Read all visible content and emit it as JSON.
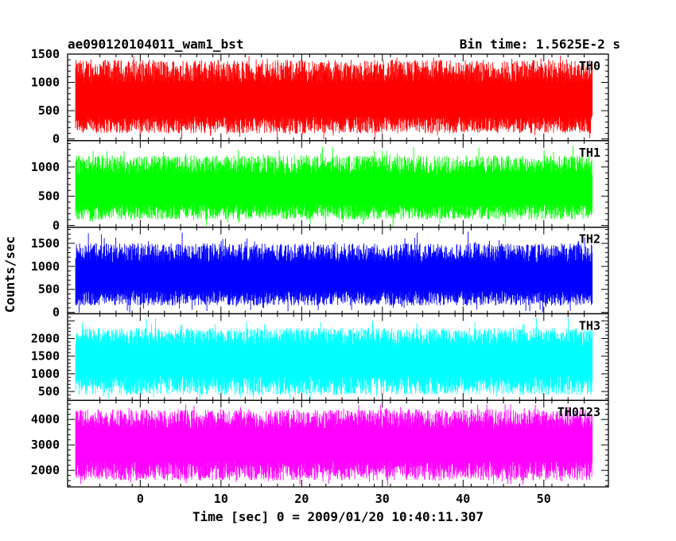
{
  "header": {
    "title": "ae090120104011_wam1_bst",
    "bin_time": "Bin time: 1.5625E-2 s"
  },
  "chart_data": {
    "type": "line",
    "title": "ae090120104011_wam1_bst",
    "xlabel": "Time [sec] 0 = 2009/01/20 10:40:11.307",
    "ylabel": "Counts/sec",
    "xlim": [
      -9,
      58
    ],
    "x_ticks": [
      0,
      10,
      20,
      30,
      40,
      50
    ],
    "x_range_data": [
      -8,
      56
    ],
    "grid": false,
    "legend": "none",
    "panels": [
      {
        "name": "TH0",
        "color": "#ff0000",
        "ylim": [
          -30,
          1500
        ],
        "y_ticks": [
          0,
          500,
          1000,
          1500
        ],
        "low": 100,
        "mid": 650,
        "high": 1400,
        "peak": 1500
      },
      {
        "name": "TH1",
        "color": "#00ff00",
        "ylim": [
          -30,
          1450
        ],
        "y_ticks": [
          0,
          500,
          1000
        ],
        "low": 100,
        "mid": 600,
        "high": 1200,
        "peak": 1400
      },
      {
        "name": "TH2",
        "color": "#0000ff",
        "ylim": [
          -30,
          1850
        ],
        "y_ticks": [
          0,
          500,
          1000,
          1500
        ],
        "low": 150,
        "mid": 750,
        "high": 1500,
        "peak": 1800
      },
      {
        "name": "TH3",
        "color": "#00ffff",
        "ylim": [
          250,
          2700
        ],
        "y_ticks": [
          500,
          1000,
          1500,
          2000
        ],
        "low": 400,
        "mid": 1400,
        "high": 2300,
        "peak": 2600
      },
      {
        "name": "TH0123",
        "color": "#ff00ff",
        "ylim": [
          1350,
          4750
        ],
        "y_ticks": [
          2000,
          3000,
          4000
        ],
        "low": 1600,
        "mid": 3000,
        "high": 4400,
        "peak": 4700
      }
    ]
  }
}
